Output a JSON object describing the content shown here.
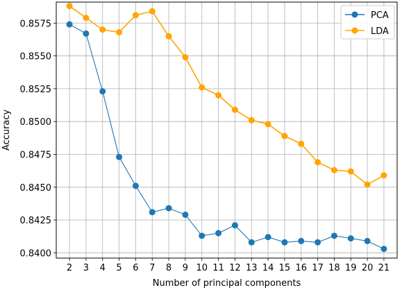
{
  "chart_data": {
    "type": "line",
    "xlabel": "Number of principal components",
    "ylabel": "Accuracy",
    "x": [
      2,
      3,
      4,
      5,
      6,
      7,
      8,
      9,
      10,
      11,
      12,
      13,
      14,
      15,
      16,
      17,
      18,
      19,
      20,
      21
    ],
    "xlim": [
      1.2,
      21.8
    ],
    "ylim": [
      0.8396,
      0.8591
    ],
    "yticks": [
      "0.8400",
      "0.8425",
      "0.8450",
      "0.8475",
      "0.8500",
      "0.8525",
      "0.8550",
      "0.8575"
    ],
    "grid": true,
    "legend_position": "top-right",
    "series": [
      {
        "name": "PCA",
        "color": "#1f77b4",
        "marker": "circle",
        "values": [
          0.8574,
          0.8567,
          0.8523,
          0.8473,
          0.8451,
          0.8431,
          0.8434,
          0.8429,
          0.8413,
          0.8415,
          0.8421,
          0.8408,
          0.8412,
          0.8408,
          0.8409,
          0.8408,
          0.8413,
          0.8411,
          0.8409,
          0.8403
        ]
      },
      {
        "name": "LDA",
        "color": "#ffa500",
        "marker": "circle",
        "values": [
          0.8588,
          0.8579,
          0.857,
          0.8568,
          0.8581,
          0.8584,
          0.8565,
          0.8549,
          0.8526,
          0.852,
          0.8509,
          0.8501,
          0.8498,
          0.8489,
          0.8483,
          0.8469,
          0.8463,
          0.8462,
          0.8452,
          0.8459
        ]
      }
    ]
  }
}
